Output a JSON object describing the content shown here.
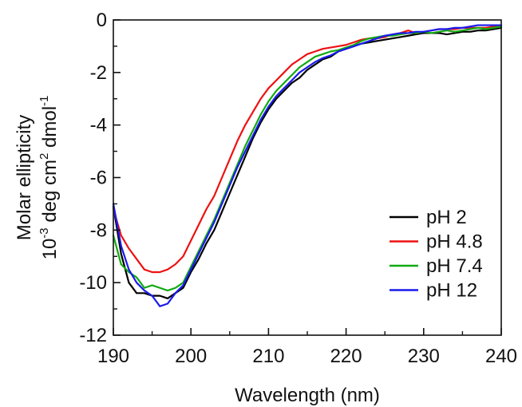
{
  "chart_data": {
    "type": "line",
    "title": "",
    "xlabel": "Wavelength (nm)",
    "ylabel": {
      "line1": "Molar ellipticity",
      "line2_parts": [
        {
          "text": "10",
          "sup": false
        },
        {
          "text": "-3",
          "sup": true
        },
        {
          "text": " deg cm",
          "sup": false
        },
        {
          "text": "2",
          "sup": true
        },
        {
          "text": " dmol",
          "sup": false
        },
        {
          "text": "-1",
          "sup": true
        }
      ]
    },
    "xlim": [
      190,
      240
    ],
    "ylim": [
      -12,
      0
    ],
    "x_ticks": [
      190,
      200,
      210,
      220,
      230,
      240
    ],
    "y_ticks": [
      0,
      -2,
      -4,
      -6,
      -8,
      -10,
      -12
    ],
    "x_tick_labels": [
      "190",
      "200",
      "210",
      "220",
      "230",
      "240"
    ],
    "y_tick_labels": [
      "0",
      "-2",
      "-4",
      "-6",
      "-8",
      "-10",
      "-12"
    ],
    "grid": false,
    "legend_position": "bottom-right",
    "series": [
      {
        "name": "pH 2",
        "color": "#000000",
        "x": [
          190,
          191,
          192,
          193,
          194,
          195,
          196,
          197,
          198,
          199,
          200,
          201,
          202,
          203,
          204,
          205,
          206,
          207,
          208,
          209,
          210,
          211,
          212,
          213,
          214,
          215,
          216,
          217,
          218,
          219,
          220,
          221,
          222,
          223,
          224,
          225,
          226,
          227,
          228,
          229,
          230,
          231,
          232,
          233,
          234,
          235,
          236,
          237,
          238,
          239,
          240
        ],
        "y": [
          -7.1,
          -8.9,
          -10.0,
          -10.4,
          -10.4,
          -10.5,
          -10.5,
          -10.6,
          -10.4,
          -10.2,
          -9.6,
          -9.1,
          -8.5,
          -8.0,
          -7.3,
          -6.6,
          -5.9,
          -5.2,
          -4.5,
          -3.9,
          -3.4,
          -3.0,
          -2.7,
          -2.4,
          -2.2,
          -1.9,
          -1.7,
          -1.5,
          -1.4,
          -1.2,
          -1.1,
          -1.0,
          -0.9,
          -0.85,
          -0.8,
          -0.75,
          -0.7,
          -0.65,
          -0.6,
          -0.55,
          -0.5,
          -0.5,
          -0.5,
          -0.55,
          -0.5,
          -0.45,
          -0.45,
          -0.4,
          -0.4,
          -0.35,
          -0.3
        ]
      },
      {
        "name": "pH 4.8",
        "color": "#ee1111",
        "x": [
          190,
          191,
          192,
          193,
          194,
          195,
          196,
          197,
          198,
          199,
          200,
          201,
          202,
          203,
          204,
          205,
          206,
          207,
          208,
          209,
          210,
          211,
          212,
          213,
          214,
          215,
          216,
          217,
          218,
          219,
          220,
          221,
          222,
          223,
          224,
          225,
          226,
          227,
          228,
          229,
          230,
          231,
          232,
          233,
          234,
          235,
          236,
          237,
          238,
          239,
          240
        ],
        "y": [
          -7.2,
          -8.2,
          -8.7,
          -9.1,
          -9.5,
          -9.6,
          -9.6,
          -9.5,
          -9.3,
          -9.0,
          -8.4,
          -7.8,
          -7.2,
          -6.7,
          -6.0,
          -5.3,
          -4.6,
          -4.0,
          -3.5,
          -3.0,
          -2.6,
          -2.3,
          -2.0,
          -1.7,
          -1.5,
          -1.3,
          -1.2,
          -1.1,
          -1.05,
          -1.0,
          -0.95,
          -0.85,
          -0.75,
          -0.7,
          -0.7,
          -0.65,
          -0.55,
          -0.5,
          -0.4,
          -0.5,
          -0.45,
          -0.4,
          -0.35,
          -0.35,
          -0.35,
          -0.3,
          -0.3,
          -0.3,
          -0.3,
          -0.25,
          -0.2
        ]
      },
      {
        "name": "pH 7.4",
        "color": "#11aa11",
        "x": [
          190,
          191,
          192,
          193,
          194,
          195,
          196,
          197,
          198,
          199,
          200,
          201,
          202,
          203,
          204,
          205,
          206,
          207,
          208,
          209,
          210,
          211,
          212,
          213,
          214,
          215,
          216,
          217,
          218,
          219,
          220,
          221,
          222,
          223,
          224,
          225,
          226,
          227,
          228,
          229,
          230,
          231,
          232,
          233,
          234,
          235,
          236,
          237,
          238,
          239,
          240
        ],
        "y": [
          -8.2,
          -9.3,
          -9.6,
          -9.8,
          -10.2,
          -10.1,
          -10.2,
          -10.3,
          -10.2,
          -10.0,
          -9.4,
          -8.8,
          -8.2,
          -7.6,
          -6.9,
          -6.2,
          -5.5,
          -4.8,
          -4.2,
          -3.6,
          -3.1,
          -2.7,
          -2.4,
          -2.1,
          -1.8,
          -1.6,
          -1.4,
          -1.3,
          -1.2,
          -1.15,
          -1.05,
          -0.95,
          -0.8,
          -0.7,
          -0.65,
          -0.6,
          -0.6,
          -0.55,
          -0.5,
          -0.5,
          -0.45,
          -0.5,
          -0.45,
          -0.4,
          -0.45,
          -0.4,
          -0.35,
          -0.3,
          -0.35,
          -0.3,
          -0.25
        ]
      },
      {
        "name": "pH 12",
        "color": "#1a1aee",
        "x": [
          190,
          191,
          192,
          193,
          194,
          195,
          196,
          197,
          198,
          199,
          200,
          201,
          202,
          203,
          204,
          205,
          206,
          207,
          208,
          209,
          210,
          211,
          212,
          213,
          214,
          215,
          216,
          217,
          218,
          219,
          220,
          221,
          222,
          223,
          224,
          225,
          226,
          227,
          228,
          229,
          230,
          231,
          232,
          233,
          234,
          235,
          236,
          237,
          238,
          239,
          240
        ],
        "y": [
          -7.0,
          -8.6,
          -9.5,
          -10.0,
          -10.3,
          -10.5,
          -10.9,
          -10.8,
          -10.4,
          -10.1,
          -9.5,
          -8.9,
          -8.3,
          -7.7,
          -7.0,
          -6.3,
          -5.6,
          -5.0,
          -4.4,
          -3.8,
          -3.3,
          -2.9,
          -2.6,
          -2.3,
          -2.0,
          -1.8,
          -1.6,
          -1.45,
          -1.35,
          -1.2,
          -1.1,
          -1.0,
          -0.9,
          -0.8,
          -0.7,
          -0.6,
          -0.55,
          -0.5,
          -0.5,
          -0.45,
          -0.45,
          -0.4,
          -0.35,
          -0.35,
          -0.3,
          -0.3,
          -0.25,
          -0.2,
          -0.2,
          -0.2,
          -0.2
        ]
      }
    ]
  }
}
